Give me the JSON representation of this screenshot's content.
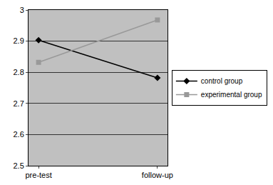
{
  "chart_data": {
    "type": "line",
    "categories": [
      "pre-test",
      "follow-up"
    ],
    "series": [
      {
        "name": "control group",
        "color": "#000000",
        "marker": "diamond",
        "values": [
          2.903,
          2.782
        ]
      },
      {
        "name": "experimental group",
        "color": "#999999",
        "marker": "square",
        "values": [
          2.832,
          2.968
        ]
      }
    ],
    "ylim": [
      2.5,
      3
    ],
    "yticks": [
      2.5,
      2.6,
      2.7,
      2.8,
      2.9,
      3
    ],
    "grid": true,
    "legend": "right"
  }
}
